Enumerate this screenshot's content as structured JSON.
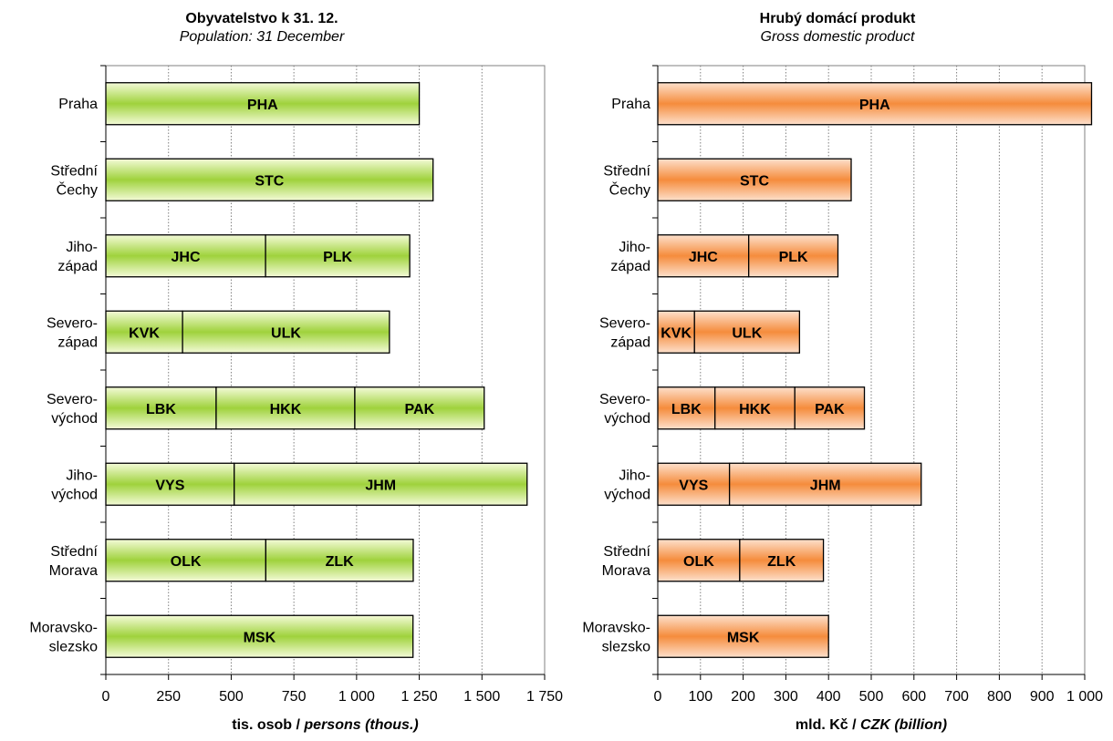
{
  "chart_data": [
    {
      "type": "bar",
      "stacked": true,
      "orientation": "horizontal",
      "title": "Obyvatelstvo k 31. 12.",
      "subtitle": "Population: 31 December",
      "xlabel_cz": "tis. osob / ",
      "xlabel_en": "persons (thous.)",
      "xlim": [
        0,
        1750
      ],
      "xticks": [
        0,
        250,
        500,
        750,
        1000,
        1250,
        1500,
        1750
      ],
      "xtick_labels": [
        "0",
        "250",
        "500",
        "750",
        "1 000",
        "1 250",
        "1 500",
        "1 750"
      ],
      "grid": "vertical-dotted",
      "fill": [
        "#f4fbd8",
        "#9fd23c"
      ],
      "stroke": "#000000",
      "categories": [
        {
          "label": [
            "Praha"
          ],
          "segments": [
            {
              "code": "PHA",
              "value": 1250
            }
          ]
        },
        {
          "label": [
            "Střední",
            "Čechy"
          ],
          "segments": [
            {
              "code": "STC",
              "value": 1305
            }
          ]
        },
        {
          "label": [
            "Jiho-",
            "západ"
          ],
          "segments": [
            {
              "code": "JHC",
              "value": 637
            },
            {
              "code": "PLK",
              "value": 575
            }
          ]
        },
        {
          "label": [
            "Severo-",
            "západ"
          ],
          "segments": [
            {
              "code": "KVK",
              "value": 306
            },
            {
              "code": "ULK",
              "value": 825
            }
          ]
        },
        {
          "label": [
            "Severo-",
            "východ"
          ],
          "segments": [
            {
              "code": "LBK",
              "value": 440
            },
            {
              "code": "HKK",
              "value": 553
            },
            {
              "code": "PAK",
              "value": 516
            }
          ]
        },
        {
          "label": [
            "Jiho-",
            "východ"
          ],
          "segments": [
            {
              "code": "VYS",
              "value": 512
            },
            {
              "code": "JHM",
              "value": 1168
            }
          ]
        },
        {
          "label": [
            "Střední",
            "Morava"
          ],
          "segments": [
            {
              "code": "OLK",
              "value": 638
            },
            {
              "code": "ZLK",
              "value": 588
            }
          ]
        },
        {
          "label": [
            "Moravsko-",
            "slezsko"
          ],
          "segments": [
            {
              "code": "MSK",
              "value": 1225
            }
          ]
        }
      ]
    },
    {
      "type": "bar",
      "stacked": true,
      "orientation": "horizontal",
      "title": "Hrubý domácí produkt",
      "subtitle": "Gross domestic product",
      "xlabel_cz": "mld. Kč / ",
      "xlabel_en": "CZK (billion)",
      "xlim": [
        0,
        1000
      ],
      "xticks": [
        0,
        100,
        200,
        300,
        400,
        500,
        600,
        700,
        800,
        900,
        1000
      ],
      "xtick_labels": [
        "0",
        "100",
        "200",
        "300",
        "400",
        "500",
        "600",
        "700",
        "800",
        "900",
        "1 000"
      ],
      "grid": "vertical-dotted",
      "fill": [
        "#fde0cc",
        "#f58c3c"
      ],
      "stroke": "#000000",
      "categories": [
        {
          "label": [
            "Praha"
          ],
          "segments": [
            {
              "code": "PHA",
              "value": 1016
            }
          ]
        },
        {
          "label": [
            "Střední",
            "Čechy"
          ],
          "segments": [
            {
              "code": "STC",
              "value": 453
            }
          ]
        },
        {
          "label": [
            "Jiho-",
            "západ"
          ],
          "segments": [
            {
              "code": "JHC",
              "value": 213
            },
            {
              "code": "PLK",
              "value": 209
            }
          ]
        },
        {
          "label": [
            "Severo-",
            "západ"
          ],
          "segments": [
            {
              "code": "KVK",
              "value": 86
            },
            {
              "code": "ULK",
              "value": 246
            }
          ]
        },
        {
          "label": [
            "Severo-",
            "východ"
          ],
          "segments": [
            {
              "code": "LBK",
              "value": 134
            },
            {
              "code": "HKK",
              "value": 187
            },
            {
              "code": "PAK",
              "value": 163
            }
          ]
        },
        {
          "label": [
            "Jiho-",
            "východ"
          ],
          "segments": [
            {
              "code": "VYS",
              "value": 168
            },
            {
              "code": "JHM",
              "value": 449
            }
          ]
        },
        {
          "label": [
            "Střední",
            "Morava"
          ],
          "segments": [
            {
              "code": "OLK",
              "value": 192
            },
            {
              "code": "ZLK",
              "value": 196
            }
          ]
        },
        {
          "label": [
            "Moravsko-",
            "slezsko"
          ],
          "segments": [
            {
              "code": "MSK",
              "value": 400
            }
          ]
        }
      ]
    }
  ]
}
